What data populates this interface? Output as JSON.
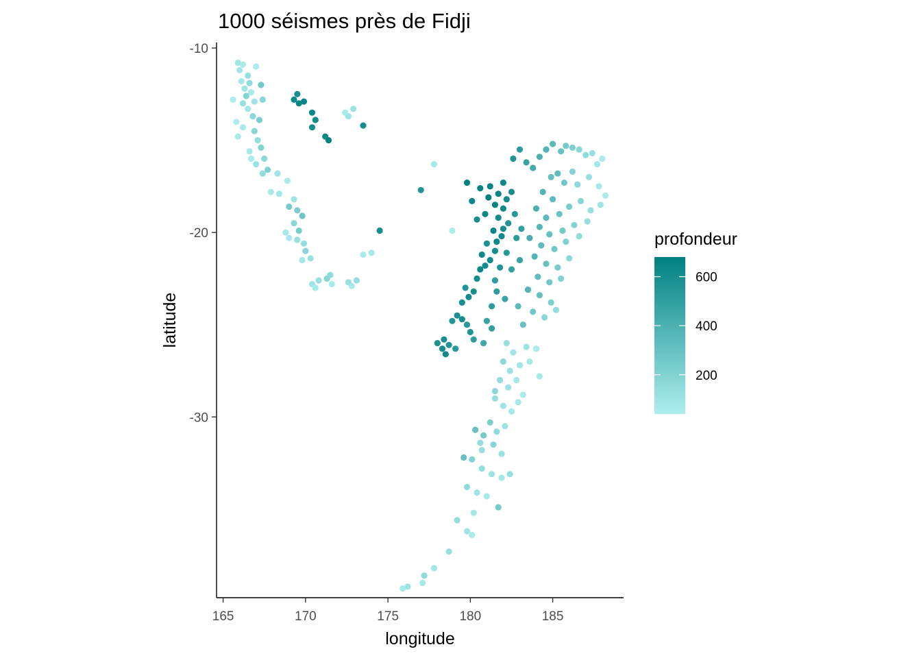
{
  "chart_data": {
    "type": "scatter",
    "title": "1000 séismes près de Fidji",
    "xlabel": "longitude",
    "ylabel": "latitude",
    "xlim": [
      164.6,
      189.3
    ],
    "ylim": [
      -39.8,
      -9.7
    ],
    "x_ticks": [
      165,
      170,
      175,
      180,
      185
    ],
    "x_tick_labels": [
      "165",
      "170",
      "175",
      "180",
      "185"
    ],
    "y_ticks": [
      -10,
      -20,
      -30
    ],
    "y_tick_labels": [
      "-10",
      "-20",
      "-30"
    ],
    "grid": false,
    "color_scale": {
      "title": "profondeur",
      "range": [
        40,
        680
      ],
      "ticks": [
        200,
        400,
        600
      ],
      "tick_labels": [
        "200",
        "400",
        "600"
      ],
      "low_color": "#aeeeee",
      "high_color": "#008080"
    },
    "legend_position": "right",
    "points": [
      [
        165.9,
        -10.8,
        90
      ],
      [
        166.2,
        -10.9,
        60
      ],
      [
        166.0,
        -11.2,
        80
      ],
      [
        166.5,
        -11.5,
        120
      ],
      [
        166.1,
        -11.8,
        70
      ],
      [
        166.6,
        -11.9,
        150
      ],
      [
        166.3,
        -12.2,
        90
      ],
      [
        166.7,
        -12.4,
        60
      ],
      [
        167.0,
        -11.0,
        50
      ],
      [
        166.4,
        -12.6,
        200
      ],
      [
        166.9,
        -12.9,
        100
      ],
      [
        167.3,
        -12.0,
        250
      ],
      [
        166.5,
        -13.3,
        80
      ],
      [
        166.8,
        -13.7,
        170
      ],
      [
        167.2,
        -13.9,
        220
      ],
      [
        166.2,
        -14.3,
        60
      ],
      [
        166.9,
        -14.5,
        180
      ],
      [
        167.1,
        -15.0,
        130
      ],
      [
        166.6,
        -15.6,
        70
      ],
      [
        167.3,
        -15.4,
        200
      ],
      [
        167.5,
        -16.0,
        160
      ],
      [
        167.0,
        -16.3,
        110
      ],
      [
        166.7,
        -16.0,
        50
      ],
      [
        167.7,
        -16.6,
        210
      ],
      [
        167.4,
        -16.8,
        140
      ],
      [
        165.6,
        -12.8,
        50
      ],
      [
        165.8,
        -14.0,
        40
      ],
      [
        165.9,
        -14.8,
        60
      ],
      [
        166.2,
        -13.0,
        130
      ],
      [
        167.4,
        -12.8,
        180
      ],
      [
        168.4,
        -17.9,
        80
      ],
      [
        168.9,
        -17.2,
        60
      ],
      [
        169.3,
        -18.2,
        90
      ],
      [
        169.0,
        -18.6,
        250
      ],
      [
        169.5,
        -18.8,
        220
      ],
      [
        169.8,
        -19.1,
        280
      ],
      [
        169.3,
        -19.5,
        180
      ],
      [
        169.6,
        -19.9,
        230
      ],
      [
        168.8,
        -20.0,
        70
      ],
      [
        169.0,
        -20.3,
        60
      ],
      [
        169.5,
        -20.4,
        120
      ],
      [
        169.9,
        -20.6,
        140
      ],
      [
        170.0,
        -21.0,
        180
      ],
      [
        169.8,
        -21.5,
        80
      ],
      [
        170.3,
        -21.4,
        110
      ],
      [
        170.4,
        -22.8,
        90
      ],
      [
        170.8,
        -22.6,
        120
      ],
      [
        170.6,
        -23.0,
        70
      ],
      [
        171.3,
        -22.5,
        180
      ],
      [
        171.5,
        -22.3,
        150
      ],
      [
        171.6,
        -22.8,
        60
      ],
      [
        172.6,
        -22.7,
        120
      ],
      [
        172.8,
        -22.9,
        70
      ],
      [
        173.1,
        -22.6,
        130
      ],
      [
        173.5,
        -21.2,
        60
      ],
      [
        174.0,
        -21.1,
        70
      ],
      [
        168.3,
        -16.8,
        90
      ],
      [
        167.9,
        -17.8,
        60
      ],
      [
        169.3,
        -12.8,
        620
      ],
      [
        169.6,
        -13.0,
        640
      ],
      [
        169.5,
        -12.5,
        600
      ],
      [
        169.9,
        -12.9,
        650
      ],
      [
        170.4,
        -13.5,
        630
      ],
      [
        170.6,
        -13.9,
        610
      ],
      [
        170.4,
        -14.3,
        600
      ],
      [
        171.2,
        -14.8,
        640
      ],
      [
        171.4,
        -15.0,
        660
      ],
      [
        172.4,
        -13.5,
        60
      ],
      [
        172.9,
        -13.3,
        110
      ],
      [
        173.5,
        -14.2,
        600
      ],
      [
        172.6,
        -13.7,
        90
      ],
      [
        174.5,
        -19.9,
        590
      ],
      [
        177.0,
        -17.7,
        560
      ],
      [
        177.8,
        -16.3,
        70
      ],
      [
        178.9,
        -19.9,
        50
      ],
      [
        178.0,
        -26.0,
        580
      ],
      [
        178.3,
        -26.3,
        600
      ],
      [
        178.5,
        -26.6,
        620
      ],
      [
        178.7,
        -26.1,
        560
      ],
      [
        178.4,
        -25.8,
        590
      ],
      [
        179.1,
        -26.3,
        540
      ],
      [
        178.9,
        -24.8,
        560
      ],
      [
        179.2,
        -24.5,
        580
      ],
      [
        179.5,
        -24.7,
        600
      ],
      [
        179.8,
        -25.0,
        540
      ],
      [
        180.0,
        -25.4,
        560
      ],
      [
        180.2,
        -25.8,
        520
      ],
      [
        179.5,
        -23.8,
        590
      ],
      [
        179.9,
        -23.5,
        620
      ],
      [
        180.2,
        -23.2,
        600
      ],
      [
        179.7,
        -23.0,
        560
      ],
      [
        180.4,
        -22.5,
        610
      ],
      [
        180.6,
        -22.0,
        640
      ],
      [
        180.9,
        -21.8,
        600
      ],
      [
        181.2,
        -21.5,
        620
      ],
      [
        180.7,
        -21.2,
        630
      ],
      [
        181.5,
        -21.0,
        600
      ],
      [
        181.0,
        -20.6,
        580
      ],
      [
        181.6,
        -20.5,
        640
      ],
      [
        181.9,
        -20.2,
        620
      ],
      [
        181.4,
        -19.9,
        650
      ],
      [
        182.0,
        -19.8,
        600
      ],
      [
        182.3,
        -19.5,
        560
      ],
      [
        181.7,
        -19.2,
        610
      ],
      [
        182.0,
        -18.7,
        630
      ],
      [
        181.5,
        -18.5,
        660
      ],
      [
        181.1,
        -18.1,
        680
      ],
      [
        181.7,
        -17.9,
        650
      ],
      [
        181.2,
        -17.5,
        670
      ],
      [
        182.0,
        -17.3,
        640
      ],
      [
        182.5,
        -17.8,
        600
      ],
      [
        182.2,
        -18.2,
        620
      ],
      [
        180.6,
        -17.6,
        660
      ],
      [
        180.1,
        -18.3,
        640
      ],
      [
        179.8,
        -17.3,
        670
      ],
      [
        180.9,
        -19.0,
        630
      ],
      [
        180.4,
        -19.3,
        600
      ],
      [
        182.7,
        -19.0,
        540
      ],
      [
        182.8,
        -20.3,
        520
      ],
      [
        183.1,
        -19.8,
        500
      ],
      [
        181.8,
        -21.9,
        560
      ],
      [
        182.2,
        -21.1,
        540
      ],
      [
        181.5,
        -22.6,
        510
      ],
      [
        182.5,
        -22.0,
        490
      ],
      [
        183.0,
        -21.5,
        470
      ],
      [
        181.3,
        -24.0,
        520
      ],
      [
        181.0,
        -24.8,
        480
      ],
      [
        180.8,
        -26.0,
        450
      ],
      [
        181.3,
        -25.2,
        500
      ],
      [
        182.1,
        -23.6,
        470
      ],
      [
        181.6,
        -23.2,
        520
      ],
      [
        182.6,
        -16.0,
        560
      ],
      [
        183.0,
        -15.5,
        520
      ],
      [
        183.4,
        -16.2,
        480
      ],
      [
        183.8,
        -16.5,
        430
      ],
      [
        184.2,
        -15.9,
        400
      ],
      [
        184.6,
        -15.5,
        380
      ],
      [
        185.0,
        -15.2,
        350
      ],
      [
        185.5,
        -15.6,
        300
      ],
      [
        185.8,
        -15.3,
        250
      ],
      [
        186.2,
        -15.4,
        220
      ],
      [
        186.6,
        -15.5,
        180
      ],
      [
        187.0,
        -15.8,
        150
      ],
      [
        187.4,
        -15.7,
        120
      ],
      [
        187.7,
        -16.3,
        80
      ],
      [
        188.0,
        -16.0,
        60
      ],
      [
        185.3,
        -16.8,
        320
      ],
      [
        185.7,
        -17.3,
        260
      ],
      [
        184.9,
        -17.0,
        300
      ],
      [
        186.2,
        -16.7,
        200
      ],
      [
        186.5,
        -17.4,
        160
      ],
      [
        187.2,
        -17.0,
        120
      ],
      [
        187.8,
        -17.5,
        70
      ],
      [
        188.2,
        -18.0,
        50
      ],
      [
        184.4,
        -17.8,
        380
      ],
      [
        185.0,
        -18.2,
        330
      ],
      [
        184.0,
        -18.7,
        400
      ],
      [
        184.6,
        -19.2,
        350
      ],
      [
        185.4,
        -19.0,
        290
      ],
      [
        186.0,
        -18.6,
        240
      ],
      [
        186.7,
        -18.3,
        180
      ],
      [
        187.3,
        -18.8,
        130
      ],
      [
        187.9,
        -18.5,
        90
      ],
      [
        184.2,
        -19.7,
        360
      ],
      [
        184.8,
        -20.1,
        310
      ],
      [
        185.6,
        -19.9,
        250
      ],
      [
        186.3,
        -19.6,
        200
      ],
      [
        187.1,
        -19.4,
        130
      ],
      [
        183.6,
        -20.3,
        420
      ],
      [
        184.3,
        -20.7,
        330
      ],
      [
        185.1,
        -20.9,
        260
      ],
      [
        185.8,
        -20.5,
        210
      ],
      [
        186.6,
        -20.2,
        150
      ],
      [
        183.9,
        -21.3,
        380
      ],
      [
        184.6,
        -21.7,
        300
      ],
      [
        185.3,
        -21.9,
        230
      ],
      [
        186.0,
        -21.4,
        170
      ],
      [
        184.1,
        -22.4,
        330
      ],
      [
        184.8,
        -22.7,
        260
      ],
      [
        185.5,
        -22.5,
        200
      ],
      [
        183.5,
        -23.1,
        380
      ],
      [
        184.2,
        -23.4,
        300
      ],
      [
        184.9,
        -23.8,
        220
      ],
      [
        183.8,
        -24.3,
        260
      ],
      [
        184.5,
        -24.6,
        180
      ],
      [
        185.2,
        -24.2,
        140
      ],
      [
        183.2,
        -25.0,
        300
      ],
      [
        182.9,
        -24.0,
        340
      ],
      [
        182.2,
        -26.0,
        120
      ],
      [
        182.6,
        -26.5,
        100
      ],
      [
        182.0,
        -27.0,
        160
      ],
      [
        182.4,
        -27.5,
        110
      ],
      [
        183.0,
        -27.2,
        90
      ],
      [
        183.6,
        -27.0,
        70
      ],
      [
        184.0,
        -26.3,
        60
      ],
      [
        181.8,
        -28.0,
        140
      ],
      [
        182.3,
        -28.4,
        100
      ],
      [
        182.8,
        -28.0,
        80
      ],
      [
        183.2,
        -28.8,
        60
      ],
      [
        181.5,
        -29.0,
        130
      ],
      [
        182.0,
        -29.4,
        90
      ],
      [
        182.5,
        -29.7,
        70
      ],
      [
        181.2,
        -30.3,
        220
      ],
      [
        181.6,
        -30.8,
        150
      ],
      [
        182.1,
        -30.5,
        100
      ],
      [
        180.3,
        -30.7,
        300
      ],
      [
        180.8,
        -31.0,
        250
      ],
      [
        181.4,
        -31.5,
        180
      ],
      [
        180.7,
        -31.8,
        120
      ],
      [
        179.6,
        -32.2,
        300
      ],
      [
        180.1,
        -32.3,
        200
      ],
      [
        180.7,
        -32.8,
        130
      ],
      [
        181.3,
        -33.1,
        100
      ],
      [
        181.9,
        -33.3,
        80
      ],
      [
        182.4,
        -33.1,
        120
      ],
      [
        179.8,
        -33.8,
        150
      ],
      [
        180.4,
        -34.1,
        100
      ],
      [
        181.0,
        -34.3,
        60
      ],
      [
        181.7,
        -34.9,
        250
      ],
      [
        180.2,
        -35.2,
        80
      ],
      [
        179.2,
        -35.6,
        140
      ],
      [
        179.8,
        -36.2,
        90
      ],
      [
        180.1,
        -36.4,
        60
      ],
      [
        178.7,
        -37.3,
        120
      ],
      [
        177.8,
        -38.2,
        80
      ],
      [
        177.2,
        -38.6,
        150
      ],
      [
        177.1,
        -39.0,
        70
      ],
      [
        176.2,
        -39.2,
        90
      ],
      [
        175.9,
        -39.3,
        60
      ],
      [
        180.6,
        -31.4,
        140
      ],
      [
        181.9,
        -32.0,
        110
      ],
      [
        181.5,
        -28.6,
        160
      ],
      [
        182.9,
        -29.2,
        70
      ],
      [
        183.4,
        -26.2,
        100
      ],
      [
        184.2,
        -27.8,
        70
      ]
    ]
  }
}
